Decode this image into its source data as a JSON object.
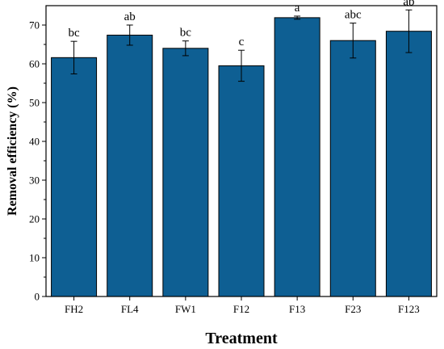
{
  "chart_data": {
    "type": "bar",
    "xlabel": "Treatment",
    "ylabel": "Removal efficiency (%)",
    "categories": [
      "FH2",
      "FL4",
      "FW1",
      "F12",
      "F13",
      "F23",
      "F123"
    ],
    "values": [
      61.6,
      67.4,
      64.0,
      59.5,
      71.9,
      66.0,
      68.4
    ],
    "errors": [
      4.2,
      2.6,
      1.9,
      4.0,
      0.4,
      4.5,
      5.5
    ],
    "significance_labels": [
      "bc",
      "ab",
      "bc",
      "c",
      "a",
      "abc",
      "ab"
    ],
    "ylim": [
      0,
      75
    ],
    "yticks": [
      "0",
      "10",
      "20",
      "30",
      "40",
      "50",
      "60",
      "70"
    ],
    "bar_color": "#0e5f93",
    "grid": false,
    "legend": "none"
  }
}
